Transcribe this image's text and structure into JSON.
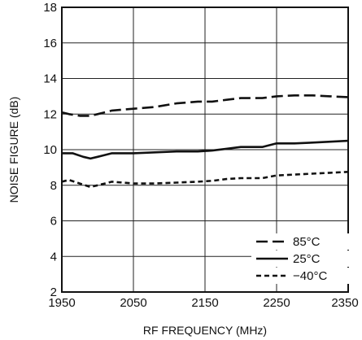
{
  "chart_data": {
    "type": "line",
    "title": "",
    "xlabel": "RF FREQUENCY (MHz)",
    "ylabel": "NOISE FIGURE (dB)",
    "xlim": [
      1950,
      2350
    ],
    "ylim": [
      2,
      18
    ],
    "xticks": [
      1950,
      2050,
      2150,
      2250,
      2350
    ],
    "yticks": [
      2,
      4,
      6,
      8,
      10,
      12,
      14,
      16,
      18
    ],
    "grid": true,
    "legend_position": "bottom-right",
    "series": [
      {
        "name": "85°C",
        "style": "long-dash",
        "x": [
          1950,
          1960,
          1975,
          1990,
          2000,
          2020,
          2050,
          2080,
          2110,
          2140,
          2160,
          2180,
          2200,
          2230,
          2250,
          2275,
          2300,
          2325,
          2350
        ],
        "y": [
          12.1,
          12.0,
          11.9,
          11.9,
          12.0,
          12.2,
          12.3,
          12.4,
          12.6,
          12.7,
          12.7,
          12.8,
          12.9,
          12.9,
          13.0,
          13.05,
          13.05,
          13.0,
          12.95
        ]
      },
      {
        "name": "25°C",
        "style": "solid",
        "x": [
          1950,
          1965,
          1980,
          1990,
          2000,
          2020,
          2050,
          2080,
          2110,
          2140,
          2160,
          2180,
          2200,
          2230,
          2250,
          2275,
          2300,
          2325,
          2350
        ],
        "y": [
          9.8,
          9.8,
          9.6,
          9.5,
          9.6,
          9.8,
          9.8,
          9.85,
          9.9,
          9.9,
          9.95,
          10.05,
          10.15,
          10.15,
          10.35,
          10.35,
          10.4,
          10.45,
          10.5
        ]
      },
      {
        "name": "−40°C",
        "style": "short-dash",
        "x": [
          1950,
          1960,
          1975,
          1990,
          2000,
          2020,
          2050,
          2080,
          2110,
          2140,
          2160,
          2180,
          2200,
          2230,
          2250,
          2275,
          2300,
          2325,
          2350
        ],
        "y": [
          8.2,
          8.3,
          8.1,
          7.9,
          8.0,
          8.2,
          8.1,
          8.1,
          8.15,
          8.2,
          8.25,
          8.35,
          8.4,
          8.4,
          8.55,
          8.6,
          8.65,
          8.7,
          8.75
        ]
      }
    ]
  }
}
